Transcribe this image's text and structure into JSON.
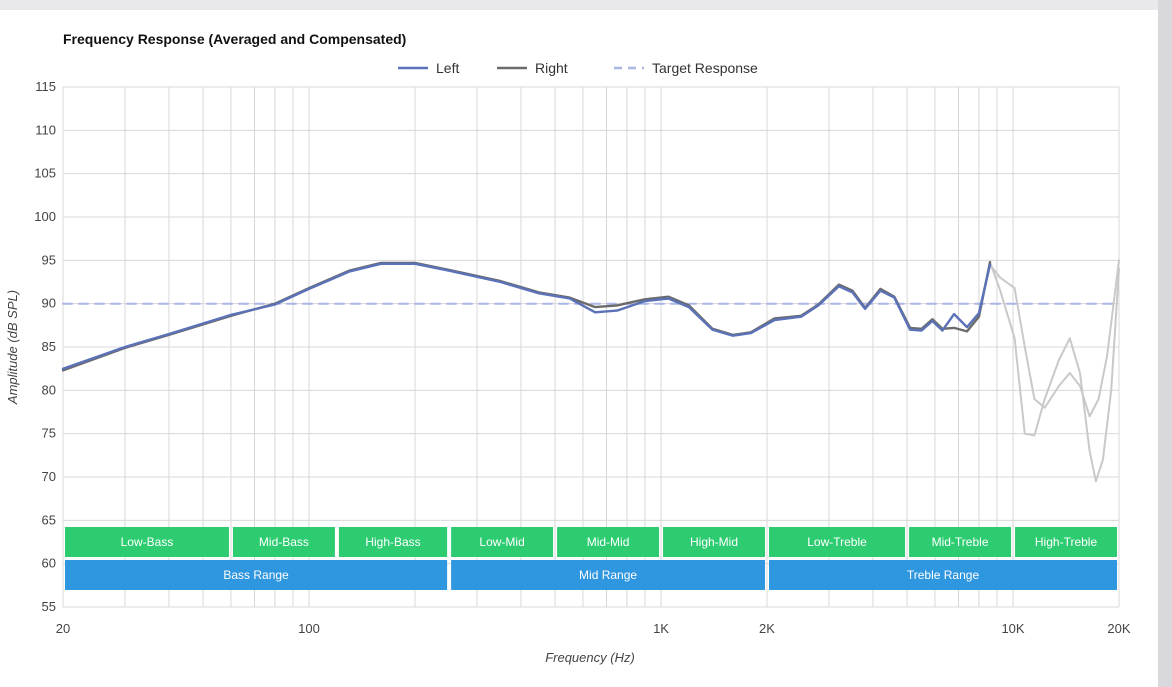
{
  "chart_data": {
    "type": "line",
    "title": "Frequency Response (Averaged and Compensated)",
    "xlabel": "Frequency (Hz)",
    "ylabel": "Amplitude (dB SPL)",
    "x_scale": "log",
    "xlim": [
      20,
      20000
    ],
    "ylim": [
      55,
      115
    ],
    "y_ticks": [
      55,
      60,
      65,
      70,
      75,
      80,
      85,
      90,
      95,
      100,
      105,
      110,
      115
    ],
    "x_ticks": [
      {
        "value": 20,
        "label": "20"
      },
      {
        "value": 100,
        "label": "100"
      },
      {
        "value": 1000,
        "label": "1K"
      },
      {
        "value": 2000,
        "label": "2K"
      },
      {
        "value": 10000,
        "label": "10K"
      },
      {
        "value": 20000,
        "label": "20K"
      }
    ],
    "grid": true,
    "legend_position": "top-center",
    "series": [
      {
        "name": "Left",
        "color": "#5b72b8",
        "style": "solid",
        "points": [
          [
            20,
            82.5
          ],
          [
            30,
            85.0
          ],
          [
            40,
            86.5
          ],
          [
            60,
            88.7
          ],
          [
            80,
            89.9
          ],
          [
            100,
            91.7
          ],
          [
            130,
            93.7
          ],
          [
            160,
            94.6
          ],
          [
            200,
            94.6
          ],
          [
            250,
            93.8
          ],
          [
            350,
            92.5
          ],
          [
            450,
            91.2
          ],
          [
            550,
            90.6
          ],
          [
            650,
            89.0
          ],
          [
            750,
            89.2
          ],
          [
            900,
            90.3
          ],
          [
            1050,
            90.6
          ],
          [
            1200,
            89.6
          ],
          [
            1400,
            87.0
          ],
          [
            1600,
            86.3
          ],
          [
            1800,
            86.6
          ],
          [
            2100,
            88.1
          ],
          [
            2500,
            88.5
          ],
          [
            2800,
            89.8
          ],
          [
            3200,
            92.0
          ],
          [
            3500,
            91.3
          ],
          [
            3800,
            89.4
          ],
          [
            4200,
            91.5
          ],
          [
            4600,
            90.7
          ],
          [
            5100,
            87.0
          ],
          [
            5500,
            86.9
          ],
          [
            5900,
            88.0
          ],
          [
            6300,
            86.9
          ],
          [
            6800,
            88.8
          ],
          [
            7400,
            87.3
          ],
          [
            8000,
            88.9
          ],
          [
            8600,
            94.5
          ]
        ],
        "faded_points": [
          [
            8600,
            94.5
          ],
          [
            9200,
            93.0
          ],
          [
            10100,
            91.8
          ],
          [
            10800,
            85.0
          ],
          [
            11500,
            79.0
          ],
          [
            12300,
            78.0
          ],
          [
            13500,
            80.5
          ],
          [
            14500,
            82.0
          ],
          [
            15500,
            80.5
          ],
          [
            16500,
            77.0
          ],
          [
            17500,
            79.0
          ],
          [
            18500,
            84.0
          ],
          [
            20000,
            95.0
          ]
        ]
      },
      {
        "name": "Right",
        "color": "#6b6b6b",
        "style": "solid",
        "points": [
          [
            20,
            82.3
          ],
          [
            30,
            84.9
          ],
          [
            40,
            86.4
          ],
          [
            60,
            88.6
          ],
          [
            80,
            90.0
          ],
          [
            100,
            91.8
          ],
          [
            130,
            93.8
          ],
          [
            160,
            94.7
          ],
          [
            200,
            94.7
          ],
          [
            250,
            93.9
          ],
          [
            350,
            92.6
          ],
          [
            450,
            91.3
          ],
          [
            550,
            90.7
          ],
          [
            650,
            89.6
          ],
          [
            750,
            89.8
          ],
          [
            900,
            90.5
          ],
          [
            1050,
            90.8
          ],
          [
            1200,
            89.8
          ],
          [
            1400,
            87.1
          ],
          [
            1600,
            86.4
          ],
          [
            1800,
            86.7
          ],
          [
            2100,
            88.3
          ],
          [
            2500,
            88.6
          ],
          [
            2800,
            89.9
          ],
          [
            3200,
            92.2
          ],
          [
            3500,
            91.5
          ],
          [
            3800,
            89.5
          ],
          [
            4200,
            91.7
          ],
          [
            4600,
            90.8
          ],
          [
            5100,
            87.2
          ],
          [
            5500,
            87.1
          ],
          [
            5900,
            88.2
          ],
          [
            6300,
            87.1
          ],
          [
            6800,
            87.2
          ],
          [
            7400,
            86.8
          ],
          [
            8000,
            88.5
          ],
          [
            8600,
            94.8
          ]
        ],
        "faded_points": [
          [
            8600,
            94.8
          ],
          [
            9200,
            91.5
          ],
          [
            10100,
            86.0
          ],
          [
            10800,
            75.0
          ],
          [
            11500,
            74.8
          ],
          [
            12300,
            79.0
          ],
          [
            13500,
            83.5
          ],
          [
            14500,
            86.0
          ],
          [
            15500,
            82.0
          ],
          [
            16500,
            73.0
          ],
          [
            17200,
            69.5
          ],
          [
            18000,
            72.0
          ],
          [
            19000,
            80.0
          ],
          [
            20000,
            94.0
          ]
        ]
      },
      {
        "name": "Target Response",
        "color": "#aab6e6",
        "style": "dashed",
        "points": [
          [
            20,
            90
          ],
          [
            20000,
            90
          ]
        ]
      }
    ],
    "bands_upper": [
      {
        "label": "Low-Bass",
        "from": 20,
        "to": 60
      },
      {
        "label": "Mid-Bass",
        "from": 60,
        "to": 120
      },
      {
        "label": "High-Bass",
        "from": 120,
        "to": 250
      },
      {
        "label": "Low-Mid",
        "from": 250,
        "to": 500
      },
      {
        "label": "Mid-Mid",
        "from": 500,
        "to": 1000
      },
      {
        "label": "High-Mid",
        "from": 1000,
        "to": 2000
      },
      {
        "label": "Low-Treble",
        "from": 2000,
        "to": 5000
      },
      {
        "label": "Mid-Treble",
        "from": 5000,
        "to": 10000
      },
      {
        "label": "High-Treble",
        "from": 10000,
        "to": 20000
      }
    ],
    "bands_lower": [
      {
        "label": "Bass Range",
        "from": 20,
        "to": 250
      },
      {
        "label": "Mid Range",
        "from": 250,
        "to": 2000
      },
      {
        "label": "Treble Range",
        "from": 2000,
        "to": 20000
      }
    ],
    "colors": {
      "band_upper": "#2ecc71",
      "band_lower": "#2f96e0",
      "grid": "#d8d8d8",
      "faded": "#c9c9c9"
    }
  }
}
